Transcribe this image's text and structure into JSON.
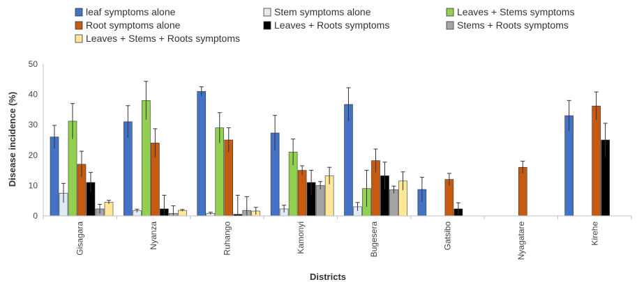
{
  "chart_data": {
    "type": "bar",
    "title": "",
    "xlabel": "Districts",
    "ylabel": "Disease incidence (%)",
    "ylim": [
      0,
      50
    ],
    "yticks": [
      0,
      10,
      20,
      30,
      40,
      50
    ],
    "grid": false,
    "legend_position": "top",
    "categories": [
      "Gisagara",
      "Nyanza",
      "Ruhango",
      "Kamonyi",
      "Bugesera",
      "Gatsibo",
      "Nyagatare",
      "Kirehe"
    ],
    "series": [
      {
        "name": "leaf symptoms alone",
        "color": "#4472C4",
        "values": [
          26,
          31,
          41,
          27.3,
          36.7,
          8.7,
          null,
          33
        ],
        "errors": [
          3.8,
          5.3,
          1.5,
          5.8,
          5.5,
          4,
          null,
          5
        ]
      },
      {
        "name": "Stem symptoms alone",
        "color": "#DEEBF7",
        "values": [
          7.5,
          1.7,
          0.8,
          2.3,
          3,
          null,
          null,
          null
        ],
        "errors": [
          3.2,
          0.5,
          0.4,
          1.2,
          1.4,
          null,
          null,
          null
        ]
      },
      {
        "name": "Leaves + Stems symptoms",
        "color": "#92D050",
        "values": [
          31.2,
          38,
          29,
          21,
          9,
          null,
          null,
          null
        ],
        "errors": [
          5.8,
          6.3,
          5,
          4.3,
          6,
          null,
          null,
          null
        ]
      },
      {
        "name": "Root symptoms alone",
        "color": "#C55A11",
        "values": [
          17,
          24,
          25,
          15,
          18.2,
          12,
          16,
          36.2
        ],
        "errors": [
          4.3,
          4.7,
          4,
          1.5,
          3.8,
          2,
          2,
          4.6
        ]
      },
      {
        "name": "Leaves + Roots symptoms",
        "color": "#000000",
        "values": [
          11,
          2.3,
          0.5,
          11,
          13.2,
          2.3,
          null,
          25
        ],
        "errors": [
          3.3,
          4.5,
          6.3,
          4,
          4.5,
          2,
          null,
          5.5
        ]
      },
      {
        "name": "Stems + Roots symptoms",
        "color": "#A5A5A5",
        "values": [
          2.3,
          0.8,
          1.8,
          10,
          8.6,
          null,
          null,
          null
        ],
        "errors": [
          1.5,
          2.5,
          4.5,
          1.3,
          1.2,
          null,
          null,
          null
        ]
      },
      {
        "name": "Leaves + Stems + Roots symptoms",
        "color": "#FFE699",
        "values": [
          4.5,
          1.8,
          1.6,
          13.2,
          11.5,
          null,
          null,
          null
        ],
        "errors": [
          0.6,
          0.3,
          1.2,
          2.8,
          3,
          null,
          null,
          null
        ]
      }
    ]
  }
}
